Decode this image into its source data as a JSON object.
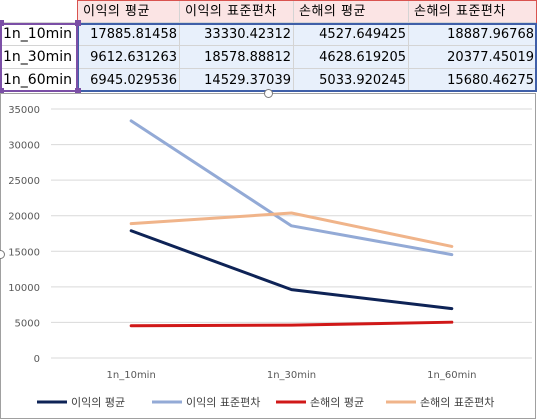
{
  "table": {
    "headers": [
      "이익의 평균",
      "이익의 표준편차",
      "손해의 평균",
      "손해의 표준편차"
    ],
    "rows": [
      {
        "label": "1n_10min",
        "values": [
          "17885.81458",
          "33330.42312",
          "4527.649425",
          "18887.96768"
        ]
      },
      {
        "label": "1n_30min",
        "values": [
          "9612.631263",
          "18578.88812",
          "4628.619205",
          "20377.45019"
        ]
      },
      {
        "label": "1n_60min",
        "values": [
          "6945.029536",
          "14529.37039",
          "5033.920245",
          "15680.46275"
        ]
      }
    ]
  },
  "chart_data": {
    "type": "line",
    "categories": [
      "1n_10min",
      "1n_30min",
      "1n_60min"
    ],
    "series": [
      {
        "name": "이익의 평균",
        "color": "#0e2356",
        "values": [
          17885.81458,
          9612.631263,
          6945.029536
        ]
      },
      {
        "name": "이익의 표준편차",
        "color": "#93aad6",
        "values": [
          33330.42312,
          18578.88812,
          14529.37039
        ]
      },
      {
        "name": "손해의 평균",
        "color": "#d01818",
        "values": [
          4527.649425,
          4628.619205,
          5033.920245
        ]
      },
      {
        "name": "손해의 표준편차",
        "color": "#f0b48a",
        "values": [
          18887.96768,
          20377.45019,
          15680.46275
        ]
      }
    ],
    "ylim": [
      0,
      35000
    ],
    "yticks": [
      "0",
      "5000",
      "10000",
      "15000",
      "20000",
      "25000",
      "30000",
      "35000"
    ],
    "grid": true,
    "legend": "bottom"
  },
  "colors": {
    "header_bg": "#fbe4e4",
    "value_bg": "#e8f0fb",
    "selection_purple": "#7b4fa6",
    "selection_blue": "#3f5fa8",
    "gridline": "#d9d9d9"
  }
}
